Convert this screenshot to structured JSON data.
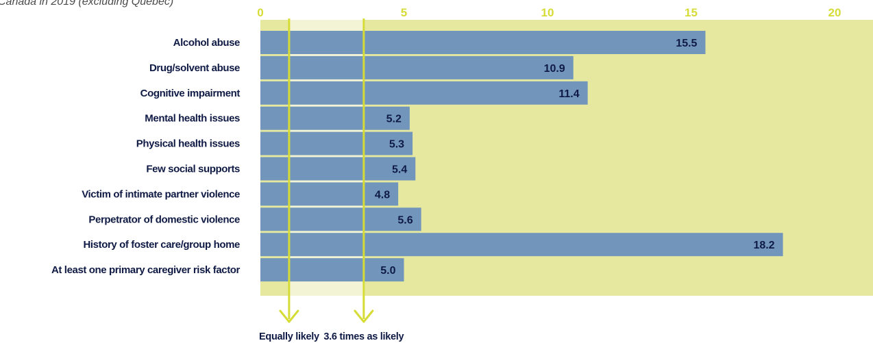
{
  "chart_data": {
    "type": "bar",
    "orientation": "horizontal",
    "subtitle": "Canada in 2019 (excluding Quebec)",
    "categories": [
      "Alcohol abuse",
      "Drug/solvent abuse",
      "Cognitive impairment",
      "Mental health issues",
      "Physical health issues",
      "Few social supports",
      "Victim of intimate partner violence",
      "Perpetrator of domestic violence",
      "History of foster care/group home",
      "At least one primary caregiver risk factor"
    ],
    "values": [
      15.5,
      10.9,
      11.4,
      5.2,
      5.3,
      5.4,
      4.8,
      5.6,
      18.2,
      5.0
    ],
    "value_labels": [
      "15.5",
      "10.9",
      "11.4",
      "5.2",
      "5.3",
      "5.4",
      "4.8",
      "5.6",
      "18.2",
      "5.0"
    ],
    "xlim": [
      0,
      21.3
    ],
    "xticks": [
      0,
      5,
      10,
      15,
      20
    ],
    "xtick_labels": [
      "0",
      "5",
      "10",
      "15",
      "20"
    ],
    "reference_lines": [
      {
        "value": 1.0,
        "label": "Equally likely"
      },
      {
        "value": 3.6,
        "label": "3.6 times as likely"
      }
    ],
    "shaded_band": [
      1.0,
      3.6
    ],
    "grid": false,
    "legend": "none",
    "colors": {
      "bar": "#7296bb",
      "background": "#e6e8a0",
      "band": "#f3f3d6",
      "reference_line": "#d6dc36",
      "tick_text": "#d6dc36",
      "label_text": "#0f1a45"
    }
  }
}
